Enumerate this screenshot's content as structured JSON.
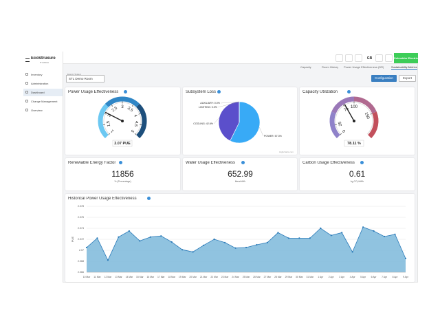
{
  "sidebar": {
    "logo": "EcoStruxure",
    "logo_sub": "IT Advisor",
    "items": [
      "Inventory",
      "Administration",
      "Dashboard",
      "Change Management",
      "Overview"
    ],
    "active": 2
  },
  "header": {
    "user": "GB",
    "brand": "Schneider Electric"
  },
  "tabs": {
    "items": [
      "Capacity",
      "Room History",
      "Power Usage Effectiveness (DR)",
      "Sustainability Metrics"
    ],
    "active": 3
  },
  "buttons": [
    "Configuration",
    "Export"
  ],
  "filter": {
    "label": "Energy System",
    "value": "STL Demo Room"
  },
  "pue": {
    "type": "gauge",
    "title": "Power Usage Effectiveness",
    "value": 2.07,
    "value_label": "2.07 PUE",
    "lim": [
      1,
      5
    ],
    "ticks": [
      1,
      1.5,
      2,
      2.5,
      3,
      3.5,
      4,
      4.5,
      5
    ],
    "colors": [
      "#6cc8f2",
      "#2f86c6",
      "#1d4f7c"
    ]
  },
  "subsystem_loss": {
    "type": "pie",
    "title": "Subsystem Loss",
    "values": [
      57.3,
      42.6,
      0.0,
      0.0
    ],
    "value_labels": [
      "POWER: 57.3%",
      "COOLING: 42.6%",
      "LIGHTING: 0.0%",
      "AUXILIARY: 0.0%"
    ],
    "colors": [
      "#38aaf6",
      "#5b4fcb",
      "#9ad36a",
      "#f5a742"
    ],
    "credit": "Highcharts.com"
  },
  "capacity": {
    "type": "gauge",
    "title": "Capacity Utilization",
    "value": 78.11,
    "value_label": "78.11 %",
    "lim": [
      0,
      200
    ],
    "ticks": [
      0,
      25,
      75,
      100,
      150
    ],
    "colors": [
      "#8f82c9",
      "#9a78b8",
      "#b0698f",
      "#c2505c"
    ]
  },
  "kpis": [
    {
      "title": "Renewable Energy Factor",
      "value": 11856,
      "unit": "% (Percentage)"
    },
    {
      "title": "Water Usage Effectiveness",
      "value": 652.99,
      "unit": "liters/kWh"
    },
    {
      "title": "Carbon Usage Effectiveness",
      "value": 0.61,
      "unit": "kg CO₂/kWh"
    }
  ],
  "history": {
    "type": "area",
    "title": "Historical Power Usage Effectiveness",
    "y_label": "PUE",
    "color": "#7db9da",
    "line_color": "#2a7ab8",
    "categories": [
      "10 Mar",
      "11 Mar",
      "12 Mar",
      "13 Mar",
      "14 Mar",
      "15 Mar",
      "16 Mar",
      "17 Mar",
      "18 Mar",
      "19 Mar",
      "20 Mar",
      "21 Mar",
      "22 Mar",
      "23 Mar",
      "24 Mar",
      "25 Mar",
      "26 Mar",
      "27 Mar",
      "28 Mar",
      "29 Mar",
      "30 Mar",
      "31 Mar",
      "1 Apr",
      "2 Apr",
      "3 Apr",
      "4 Apr",
      "5 Apr",
      "6 Apr",
      "7 Apr",
      "8 Apr",
      "9 Apr"
    ],
    "values": [
      2.0705,
      2.0722,
      2.0682,
      2.0724,
      2.0735,
      2.0717,
      2.0724,
      2.0726,
      2.0715,
      2.0701,
      2.0697,
      2.0709,
      2.072,
      2.0714,
      2.0704,
      2.0705,
      2.071,
      2.0714,
      2.0732,
      2.0722,
      2.0722,
      2.0722,
      2.074,
      2.0727,
      2.0732,
      2.0697,
      2.0742,
      2.0735,
      2.0725,
      2.0729,
      2.0685
    ],
    "ylim": [
      2.066,
      2.078
    ],
    "yticks": [
      2.066,
      2.068,
      2.07,
      2.072,
      2.074,
      2.076,
      2.078
    ],
    "grid": true
  }
}
